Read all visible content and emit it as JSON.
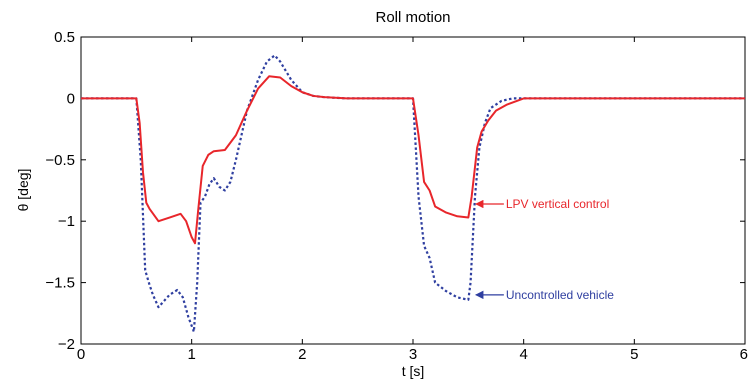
{
  "chart_data": {
    "type": "line",
    "title": "Roll motion",
    "xlabel": "t [s]",
    "ylabel": "θ [deg]",
    "xlim": [
      0,
      6
    ],
    "ylim": [
      -2,
      0.5
    ],
    "xticks": [
      0,
      1,
      2,
      3,
      4,
      5,
      6
    ],
    "xtick_labels": [
      "0",
      "1",
      "2",
      "3",
      "4",
      "5",
      "6"
    ],
    "yticks": [
      0.5,
      0,
      -0.5,
      -1,
      -1.5,
      -2
    ],
    "ytick_labels": [
      "0.5",
      "0",
      "−0.5",
      "−1",
      "−1.5",
      "−2"
    ],
    "grid": false,
    "series": [
      {
        "name": "LPV vertical control",
        "color": "#e8262b",
        "style": "solid",
        "x": [
          0,
          0.5,
          0.53,
          0.56,
          0.59,
          0.62,
          0.7,
          0.8,
          0.9,
          0.95,
          1.0,
          1.03,
          1.06,
          1.1,
          1.15,
          1.2,
          1.3,
          1.4,
          1.5,
          1.6,
          1.7,
          1.8,
          1.9,
          2.0,
          2.1,
          2.2,
          2.4,
          3.0,
          3.05,
          3.1,
          3.15,
          3.2,
          3.3,
          3.4,
          3.5,
          3.53,
          3.58,
          3.62,
          3.68,
          3.75,
          3.85,
          4.0,
          6.0
        ],
        "y": [
          0,
          0,
          -0.2,
          -0.6,
          -0.85,
          -0.9,
          -1.0,
          -0.97,
          -0.94,
          -1.0,
          -1.13,
          -1.18,
          -0.9,
          -0.55,
          -0.46,
          -0.43,
          -0.42,
          -0.3,
          -0.1,
          0.08,
          0.18,
          0.17,
          0.1,
          0.05,
          0.02,
          0.01,
          0,
          0,
          -0.3,
          -0.68,
          -0.75,
          -0.88,
          -0.93,
          -0.96,
          -0.97,
          -0.8,
          -0.4,
          -0.27,
          -0.18,
          -0.1,
          -0.05,
          0,
          0
        ]
      },
      {
        "name": "Uncontrolled vehicle",
        "color": "#2f3fa0",
        "style": "dotted",
        "x": [
          0,
          0.5,
          0.54,
          0.58,
          0.62,
          0.65,
          0.7,
          0.75,
          0.8,
          0.87,
          0.92,
          0.97,
          1.02,
          1.05,
          1.08,
          1.12,
          1.16,
          1.2,
          1.25,
          1.3,
          1.35,
          1.4,
          1.5,
          1.6,
          1.68,
          1.75,
          1.8,
          1.9,
          2.0,
          2.1,
          2.2,
          2.4,
          3.0,
          3.05,
          3.1,
          3.15,
          3.2,
          3.3,
          3.4,
          3.5,
          3.52,
          3.56,
          3.6,
          3.65,
          3.7,
          3.8,
          3.9,
          4.0,
          6.0
        ],
        "y": [
          0,
          0,
          -0.5,
          -1.4,
          -1.52,
          -1.6,
          -1.7,
          -1.65,
          -1.6,
          -1.56,
          -1.62,
          -1.78,
          -1.9,
          -1.5,
          -0.85,
          -0.8,
          -0.7,
          -0.65,
          -0.72,
          -0.75,
          -0.68,
          -0.5,
          -0.1,
          0.15,
          0.3,
          0.35,
          0.3,
          0.15,
          0.05,
          0.02,
          0.01,
          0,
          0,
          -0.8,
          -1.2,
          -1.3,
          -1.5,
          -1.57,
          -1.62,
          -1.64,
          -1.5,
          -0.8,
          -0.4,
          -0.2,
          -0.08,
          -0.02,
          0,
          0,
          0
        ]
      }
    ],
    "annotations": [
      {
        "text": "LPV vertical control",
        "series": 0,
        "arrow_to": [
          3.55,
          -0.86
        ],
        "color": "#e8262b"
      },
      {
        "text": "Uncontrolled vehicle",
        "series": 1,
        "arrow_to": [
          3.55,
          -1.6
        ],
        "color": "#2f3fa0"
      }
    ]
  }
}
